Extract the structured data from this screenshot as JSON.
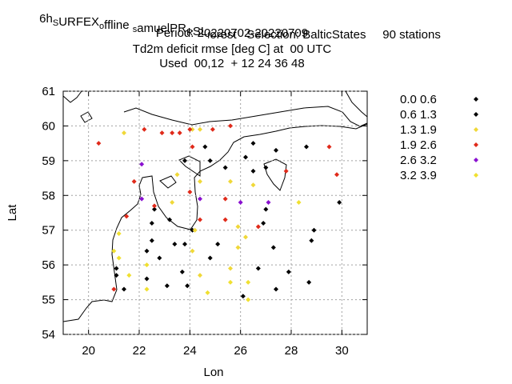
{
  "chart_data": {
    "type": "scatter",
    "title_lines": [
      [
        "6h",
        {
          "sub": "S"
        },
        "URFEX",
        {
          "sub": "o"
        },
        "ffline ",
        {
          "sub": "s"
        },
        "amuelPR",
        {
          "sub": "R"
        },
        "SL",
        {
          "sub": "f"
        },
        "orest   Selection: BalticStates     90 stations"
      ],
      [
        "Period: 20220702-20220709"
      ],
      [
        "Td2m deficit rmse [deg C] at  00 UTC"
      ],
      [
        "Used  00,12  + 12 24 36 48"
      ]
    ],
    "x_label": "Lon",
    "y_label": "Lat",
    "xlim": [
      19,
      31
    ],
    "xticks": [
      20,
      22,
      24,
      26,
      28,
      30
    ],
    "ylim": [
      54,
      61
    ],
    "yticks": [
      54,
      55,
      56,
      57,
      58,
      59,
      60,
      61
    ],
    "grid": true,
    "series": [
      {
        "name": "0.0 0.6",
        "color": "#000000",
        "x": [
          24.6,
          24.8,
          23.8,
          25.4,
          26.2,
          26.5,
          26.5,
          27.0,
          27.4,
          28.6,
          22.6,
          22.5,
          22.3,
          22.5,
          22.8,
          23.4,
          23.8,
          23.2
        ],
        "values": [
          59.4,
          59.0,
          59.0,
          58.8,
          59.1,
          59.5,
          58.7,
          58.8,
          59.3,
          59.4,
          57.6,
          57.2,
          56.4,
          56.7,
          56.2,
          56.6,
          56.6,
          57.3
        ]
      },
      {
        "name": "0.6 1.3",
        "color": "#000000",
        "x": [
          24.1,
          25.1,
          24.8,
          23.7,
          23.9,
          23.1,
          22.3,
          21.4,
          21.1,
          21.1,
          27.0,
          26.9,
          27.3,
          28.8,
          28.9,
          27.9,
          28.7,
          27.4,
          26.1,
          26.7,
          29.9
        ],
        "values": [
          57.0,
          56.6,
          56.2,
          55.8,
          55.4,
          55.4,
          55.6,
          55.3,
          55.9,
          55.7,
          57.6,
          57.2,
          56.5,
          56.7,
          57.0,
          55.8,
          55.5,
          55.3,
          55.1,
          55.9,
          57.8
        ]
      },
      {
        "name": "1.3 1.9",
        "color": "#f0d838",
        "x": [
          21.4,
          24.1,
          24.4,
          23.5,
          25.6,
          26.5,
          24.4,
          23.3,
          24.2,
          24.1,
          25.9,
          26.2,
          25.9,
          25.6,
          24.4
        ],
        "values": [
          59.8,
          59.9,
          59.9,
          58.6,
          58.4,
          58.3,
          58.4,
          57.8,
          57.0,
          56.4,
          57.1,
          56.8,
          56.5,
          55.9,
          55.7
        ]
      },
      {
        "name": "1.9 2.6",
        "color": "#e02a1a",
        "x": [
          20.4,
          22.2,
          22.9,
          23.3,
          23.6,
          24.0,
          24.9,
          25.6,
          24.1,
          21.8,
          22.6,
          21.5,
          24.0,
          24.4,
          25.4,
          25.4,
          26.7,
          27.8,
          29.5,
          29.8,
          21.0
        ],
        "values": [
          59.5,
          59.9,
          59.8,
          59.8,
          59.8,
          59.9,
          59.9,
          60.0,
          59.4,
          58.4,
          57.7,
          57.4,
          58.1,
          57.3,
          57.9,
          57.3,
          57.1,
          58.7,
          59.4,
          58.6,
          55.3
        ]
      },
      {
        "name": "2.6 3.2",
        "color": "#8a10d0",
        "x": [
          22.1,
          22.1,
          24.4,
          26.0,
          27.1
        ],
        "values": [
          58.9,
          57.9,
          57.9,
          57.8,
          57.8
        ]
      },
      {
        "name": "3.2 3.9",
        "color": "#f0e030",
        "x": [
          22.3,
          21.6,
          21.2,
          21.2,
          21.0,
          22.3,
          24.7,
          25.6,
          26.3,
          26.3,
          28.3
        ],
        "values": [
          56.0,
          55.7,
          56.2,
          56.9,
          56.4,
          55.3,
          55.2,
          55.5,
          55.5,
          55.0,
          57.8
        ]
      }
    ]
  }
}
